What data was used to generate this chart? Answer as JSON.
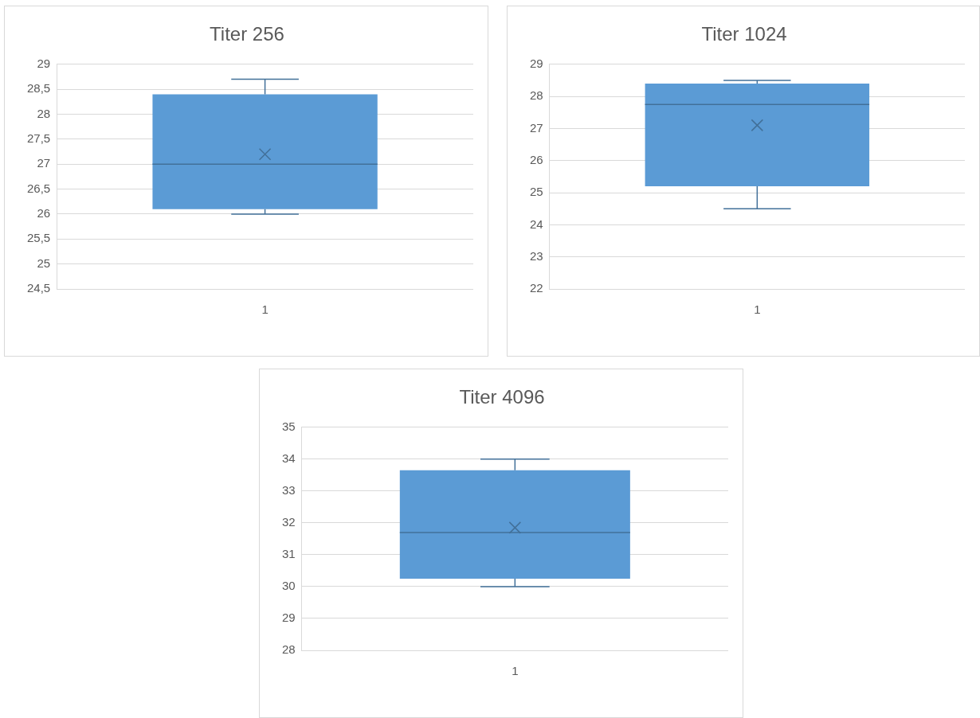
{
  "chart_data": [
    {
      "type": "box",
      "title": "Titer 256",
      "categories": [
        "1"
      ],
      "color": "#5b9bd5",
      "boxes": [
        {
          "low": 26,
          "q1": 26.1,
          "median": 27,
          "q3": 28.4,
          "high": 28.7,
          "mean": 27.2
        }
      ],
      "ylim": [
        24.5,
        29
      ],
      "yticks": [
        {
          "value": 24.5,
          "label": "24,5"
        },
        25,
        {
          "value": 25.5,
          "label": "25,5"
        },
        26,
        {
          "value": 26.5,
          "label": "26,5"
        },
        27,
        {
          "value": 27.5,
          "label": "27,5"
        },
        28,
        {
          "value": 28.5,
          "label": "28,5"
        },
        29
      ],
      "grid": "y"
    },
    {
      "type": "box",
      "title": "Titer 1024",
      "categories": [
        "1"
      ],
      "color": "#5b9bd5",
      "boxes": [
        {
          "low": 24.5,
          "q1": 25.2,
          "median": 27.75,
          "q3": 28.4,
          "high": 28.5,
          "mean": 27.1
        }
      ],
      "ylim": [
        22,
        29
      ],
      "yticks": [
        22,
        23,
        24,
        25,
        26,
        27,
        28,
        29
      ],
      "grid": "y"
    },
    {
      "type": "box",
      "title": "Titer 4096",
      "categories": [
        "1"
      ],
      "color": "#5b9bd5",
      "boxes": [
        {
          "low": 30,
          "q1": 30.25,
          "median": 31.7,
          "q3": 33.65,
          "high": 34,
          "mean": 31.85
        }
      ],
      "ylim": [
        28,
        35
      ],
      "yticks": [
        28,
        29,
        30,
        31,
        32,
        33,
        34,
        35
      ],
      "grid": "y"
    }
  ]
}
